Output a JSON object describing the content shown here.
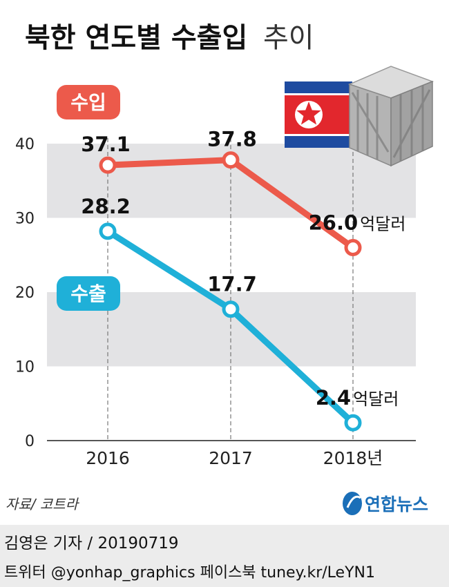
{
  "chart_data": {
    "type": "line",
    "title_bold": "북한 연도별 수출입",
    "title_light": "추이",
    "categories": [
      "2016",
      "2017",
      "2018"
    ],
    "x_unit": "년",
    "ylim": [
      0,
      40
    ],
    "yticks": [
      "0",
      "10",
      "20",
      "30",
      "40"
    ],
    "value_unit": "억달러",
    "series": [
      {
        "name": "수입",
        "values": [
          37.1,
          37.8,
          26.0
        ],
        "labels": [
          "37.1",
          "37.8",
          "26.0"
        ],
        "color": "#ec5a4b"
      },
      {
        "name": "수출",
        "values": [
          28.2,
          17.7,
          2.4
        ],
        "labels": [
          "28.2",
          "17.7",
          "2.4"
        ],
        "color": "#1fb0d8"
      }
    ],
    "source": "자료/ 코트라",
    "logo_text": "연합뉴스"
  },
  "footer": {
    "credit": "김영은 기자 / 20190719",
    "social": "트위터 @yonhap_graphics  페이스북 tuney.kr/LeYN1"
  },
  "colors": {
    "band": "#e3e3e5",
    "axis": "#555555",
    "logo_blue": "#1b6fb8",
    "flag_blue": "#1e4ba0",
    "flag_red": "#e2272d"
  }
}
